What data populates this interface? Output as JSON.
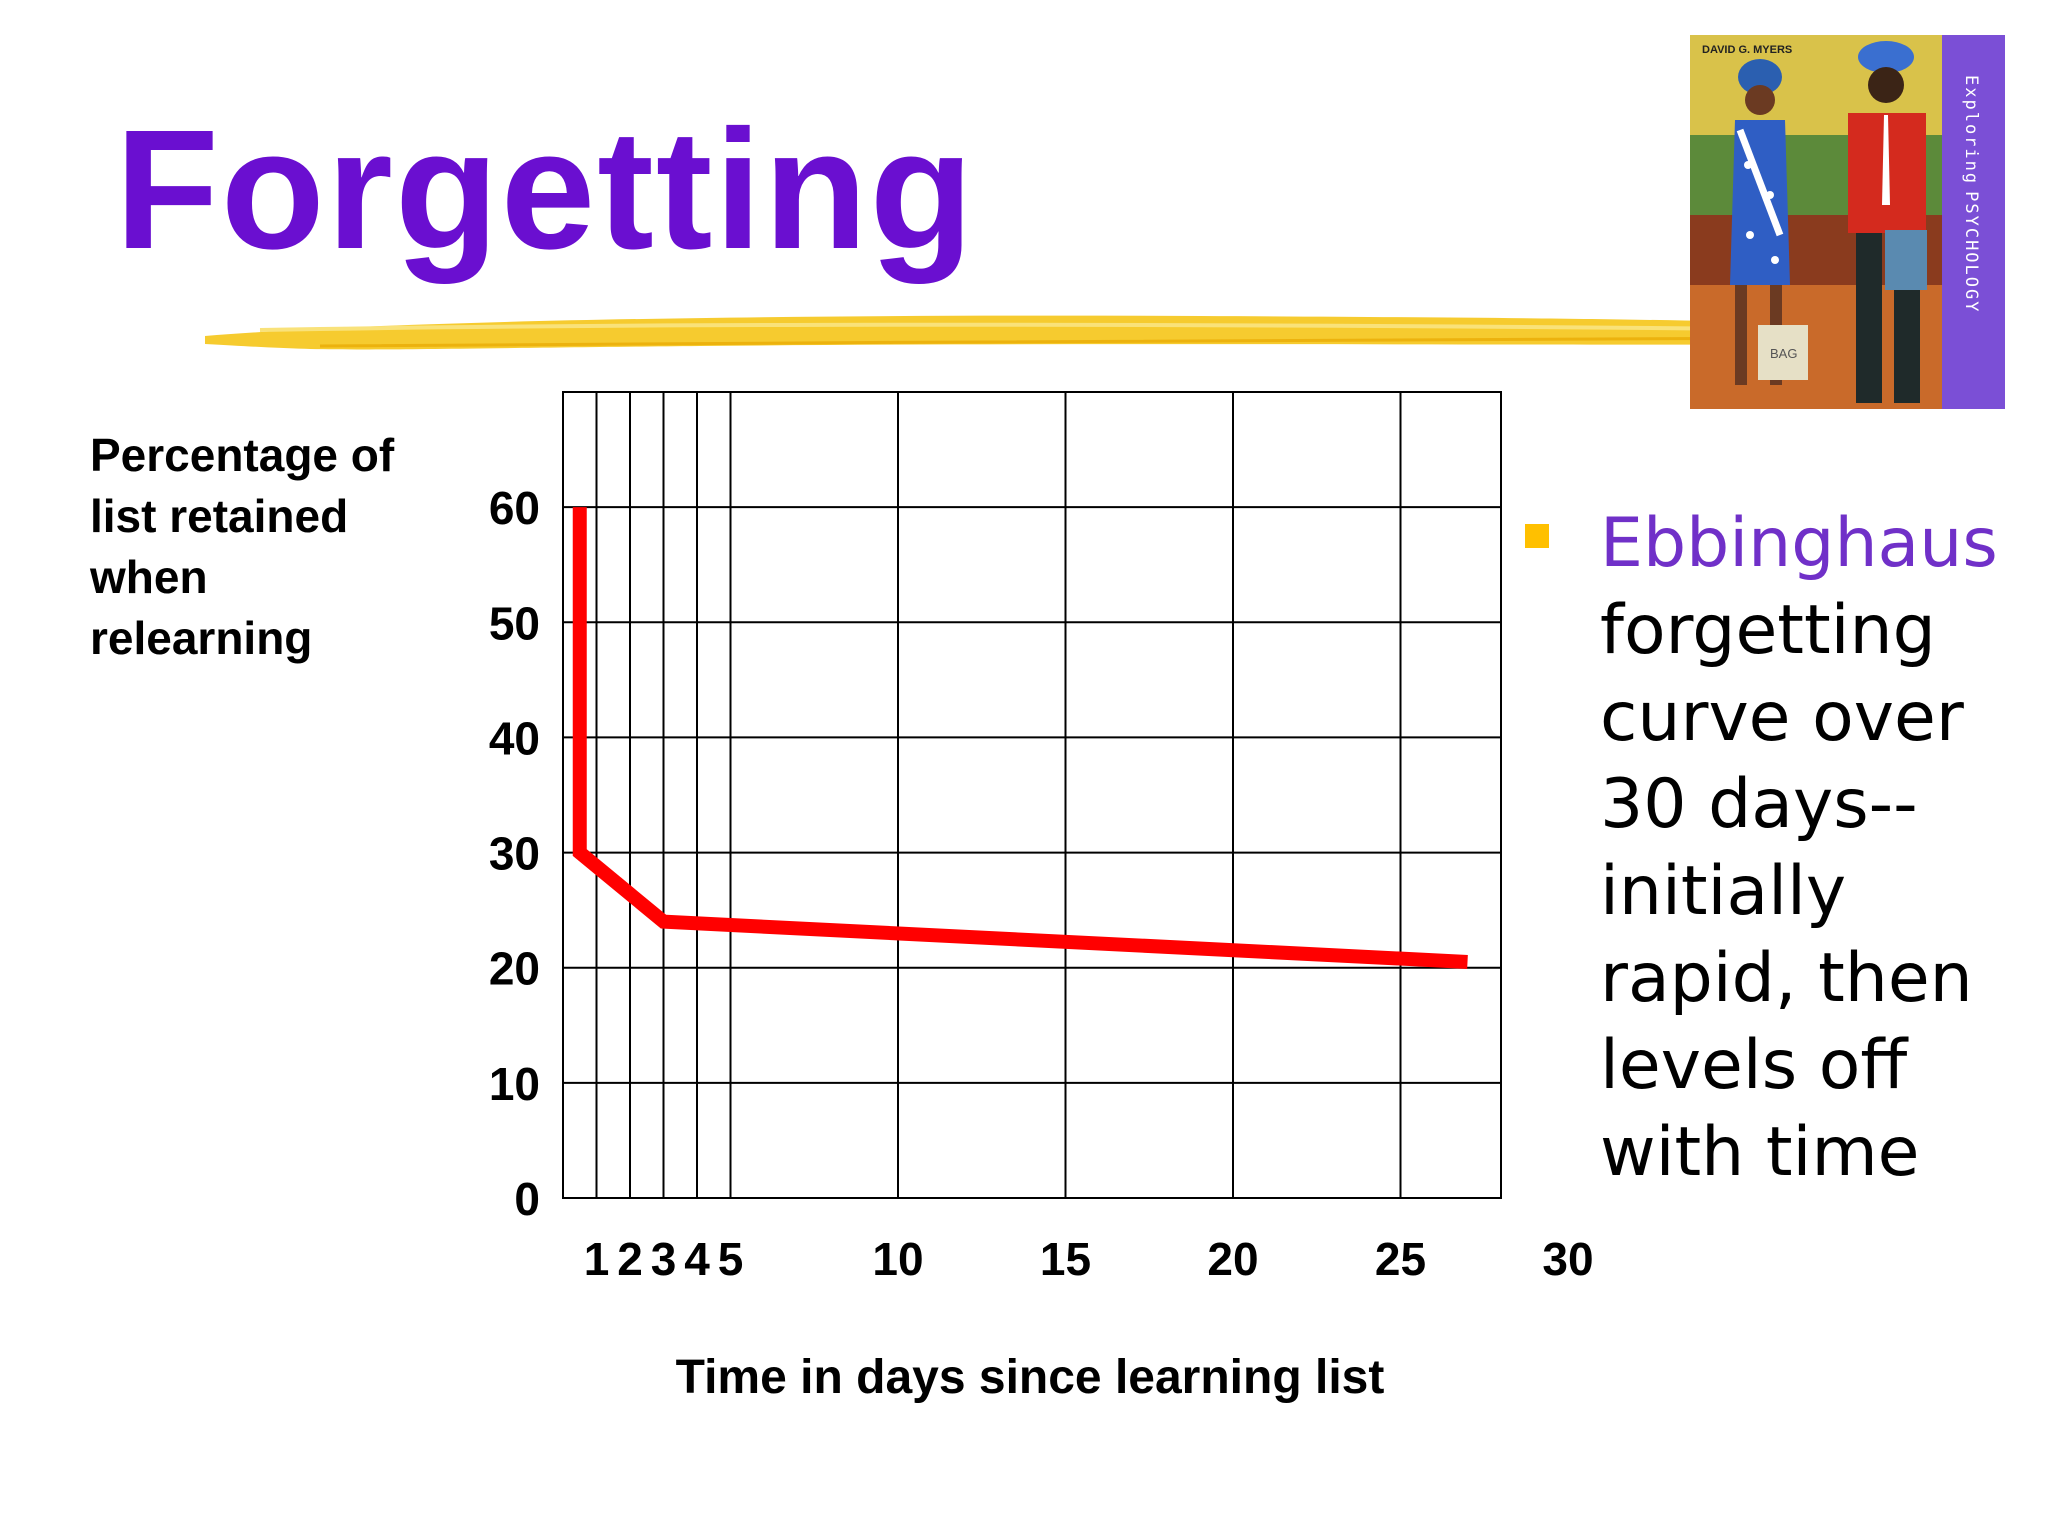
{
  "slide": {
    "title": "Forgetting",
    "book_cover_lines": [
      "DAVID G. MYERS",
      "Exploring",
      "PSYCHOLOGY"
    ],
    "book_cover_bag_label": "BAG",
    "bullet": {
      "highlight": "Ebbinghaus",
      "rest": "forgetting curve over 30 days--initially rapid, then levels off with time"
    }
  },
  "chart_data": {
    "type": "line",
    "title": "",
    "xlabel": "Time in days since learning list",
    "ylabel": "Percentage of\nlist retained\nwhen\nrelearning",
    "x_ticks": [
      1,
      2,
      3,
      4,
      5,
      10,
      15,
      20,
      25,
      30
    ],
    "y_ticks": [
      0,
      10,
      20,
      30,
      40,
      50,
      60
    ],
    "xlim": [
      0,
      28
    ],
    "ylim": [
      0,
      70
    ],
    "grid": true,
    "series": [
      {
        "color": "#ff0000",
        "x": [
          0.5,
          0.5,
          3,
          27
        ],
        "y": [
          60,
          30,
          24,
          20.5
        ]
      }
    ]
  }
}
